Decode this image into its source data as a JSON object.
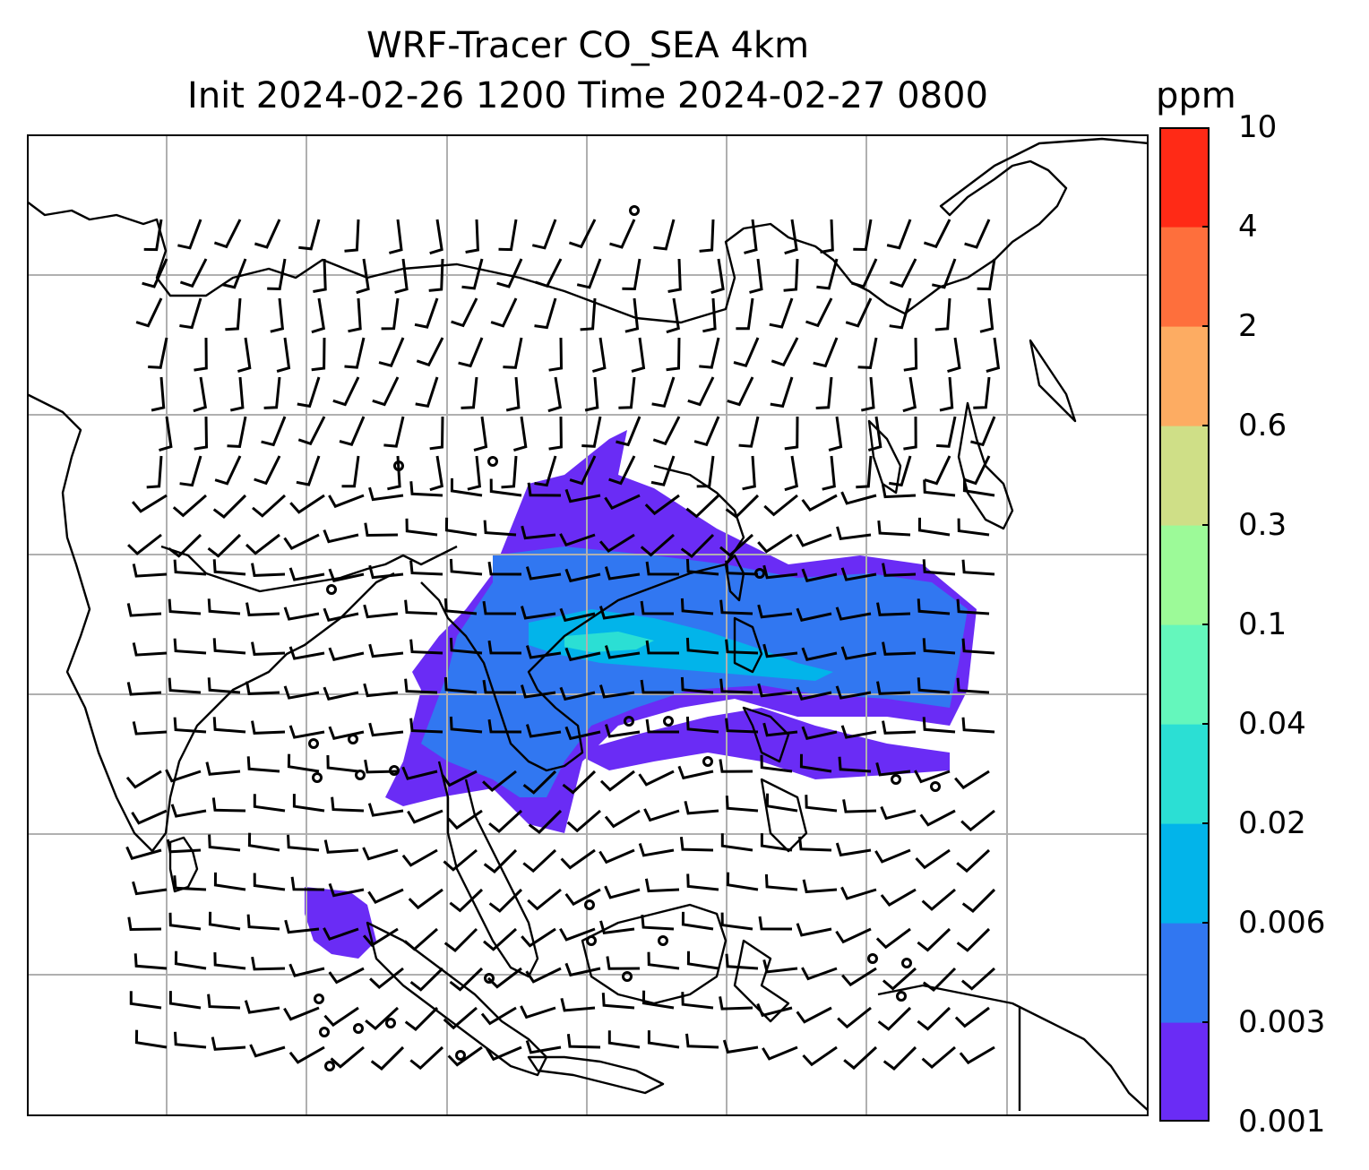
{
  "title": {
    "line1": "WRF-Tracer CO_SEA 4km",
    "line2": "Init 2024-02-26 1200 Time 2024-02-27 0800"
  },
  "colorbar": {
    "unit": "ppm",
    "levels": [
      "0.001",
      "0.003",
      "0.006",
      "0.02",
      "0.04",
      "0.1",
      "0.3",
      "0.6",
      "2",
      "4",
      "10"
    ],
    "colors": [
      "#6a2cf5",
      "#3177f1",
      "#02b4ea",
      "#2bdfd4",
      "#64f7bc",
      "#9cfa98",
      "#cfdf87",
      "#fdac62",
      "#fe6f3c",
      "#ff2a16"
    ]
  },
  "map": {
    "gridlines": true,
    "coastline_color": "#000000",
    "grid_color": "#b0b0b0",
    "plume_colors": {
      "low": "#6a2cf5",
      "mid": "#3177f1",
      "high": "#02b4ea",
      "peak": "#2bdfd4"
    },
    "calm_marker": "circle",
    "wind_barbs": true
  }
}
